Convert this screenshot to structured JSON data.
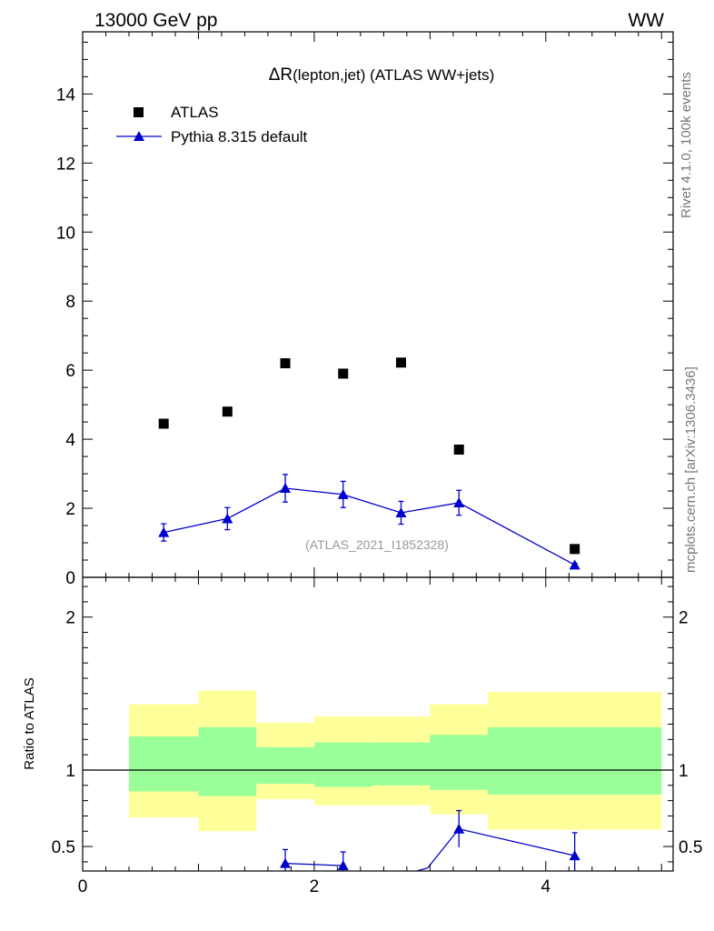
{
  "header": {
    "left": "13000 GeV pp",
    "right": "WW"
  },
  "side_labels": {
    "rivet": "Rivet 4.1.0,  100k events",
    "mcplots": "mcplots.cern.ch [arXiv:1306.3436]"
  },
  "colors": {
    "data": "#000000",
    "mc": "#0000cc",
    "band_outer": "#ffff99",
    "band_inner": "#99ff99"
  },
  "chart_data": [
    {
      "type": "scatter",
      "title_symbol": "ΔR",
      "title_rest": "(lepton,jet) (ATLAS WW+jets)",
      "watermark": "(ATLAS_2021_I1852328)",
      "xlim": [
        0,
        5.1
      ],
      "ylim": [
        0,
        15.8
      ],
      "y_ticks": [
        0,
        2,
        4,
        6,
        8,
        10,
        12,
        14
      ],
      "y_tick_labels": [
        "0",
        "2",
        "4",
        "6",
        "8",
        "10",
        "12",
        "14"
      ],
      "legend": {
        "position": "top-left",
        "entries": [
          "ATLAS",
          "Pythia 8.315 default"
        ]
      },
      "series": [
        {
          "name": "ATLAS",
          "marker": "square",
          "x": [
            0.7,
            1.25,
            1.75,
            2.25,
            2.75,
            3.25,
            4.25
          ],
          "y": [
            4.45,
            4.8,
            6.2,
            5.9,
            6.22,
            3.7,
            0.82
          ]
        },
        {
          "name": "Pythia 8.315 default",
          "marker": "triangle",
          "x": [
            0.7,
            1.25,
            1.75,
            2.25,
            2.75,
            3.25,
            4.25
          ],
          "y": [
            1.3,
            1.7,
            2.58,
            2.4,
            1.87,
            2.16,
            0.36
          ],
          "yerr": [
            0.25,
            0.32,
            0.4,
            0.38,
            0.33,
            0.36,
            0.05
          ]
        }
      ]
    },
    {
      "type": "scatter",
      "ylabel": "Ratio to ATLAS",
      "xlim": [
        0,
        5.1
      ],
      "ylim": [
        0.34,
        2.26
      ],
      "y_ticks": [
        0.5,
        1,
        2
      ],
      "y_tick_labels": [
        "0.5",
        "1",
        "2"
      ],
      "x_ticks": [
        0,
        2,
        4
      ],
      "x_tick_labels": [
        "0",
        "2",
        "4"
      ],
      "bands": [
        {
          "x0": 0.4,
          "x1": 1.0,
          "inner": [
            0.86,
            1.22
          ],
          "outer": [
            0.69,
            1.43
          ]
        },
        {
          "x0": 1.0,
          "x1": 1.5,
          "inner": [
            0.83,
            1.28
          ],
          "outer": [
            0.6,
            1.52
          ]
        },
        {
          "x0": 1.5,
          "x1": 2.0,
          "inner": [
            0.91,
            1.15
          ],
          "outer": [
            0.81,
            1.31
          ]
        },
        {
          "x0": 2.0,
          "x1": 2.5,
          "inner": [
            0.89,
            1.18
          ],
          "outer": [
            0.77,
            1.35
          ]
        },
        {
          "x0": 2.5,
          "x1": 3.0,
          "inner": [
            0.9,
            1.18
          ],
          "outer": [
            0.77,
            1.35
          ]
        },
        {
          "x0": 3.0,
          "x1": 3.5,
          "inner": [
            0.87,
            1.23
          ],
          "outer": [
            0.71,
            1.43
          ]
        },
        {
          "x0": 3.5,
          "x1": 5.0,
          "inner": [
            0.84,
            1.28
          ],
          "outer": [
            0.61,
            1.51
          ]
        }
      ],
      "ratio_series": {
        "name": "Pythia 8.315 default / ATLAS",
        "x": [
          1.75,
          2.25,
          3.25,
          4.25
        ],
        "y": [
          0.39,
          0.375,
          0.615,
          0.44
        ],
        "yerr_hi": [
          0.09,
          0.09,
          0.12,
          0.15
        ],
        "line_segments": [
          [
            1.75,
            0.39,
            2.25,
            0.375
          ],
          [
            2.7,
            0.3,
            2.98,
            0.36
          ],
          [
            2.98,
            0.36,
            3.25,
            0.615
          ],
          [
            3.25,
            0.615,
            4.25,
            0.44
          ]
        ]
      }
    }
  ]
}
